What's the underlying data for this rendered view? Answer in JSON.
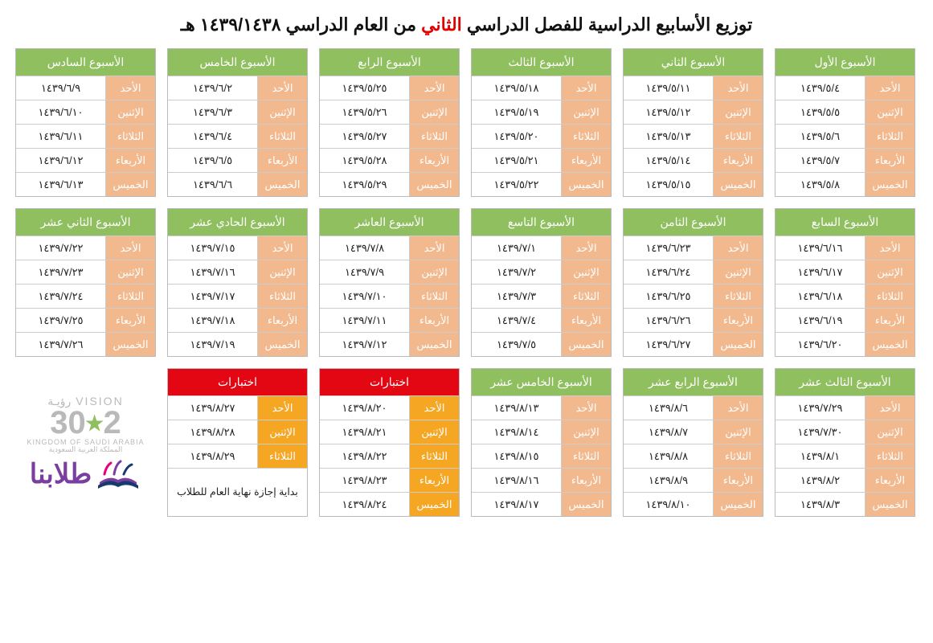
{
  "title_parts": {
    "a": "توزيع الأسابيع الدراسية للفصل الدراسي",
    "b": "الثاني",
    "c": "من العام الدراسي ١٤٣٩/١٤٣٨ هـ"
  },
  "colors": {
    "header_green": "#8fbf5f",
    "header_red": "#e30613",
    "label_orange": "#f2b98f",
    "label_yellow": "#f5a623",
    "border": "#cccccc",
    "title_red": "#e00000"
  },
  "day_names": [
    "الأحد",
    "الإثنين",
    "الثلاثاء",
    "الأربعاء",
    "الخميس"
  ],
  "weeks": [
    {
      "title": "الأسبوع الأول",
      "header": "green",
      "label": "orange",
      "dates": [
        "١٤٣٩/٥/٤",
        "١٤٣٩/٥/٥",
        "١٤٣٩/٥/٦",
        "١٤٣٩/٥/٧",
        "١٤٣٩/٥/٨"
      ]
    },
    {
      "title": "الأسبوع الثاني",
      "header": "green",
      "label": "orange",
      "dates": [
        "١٤٣٩/٥/١١",
        "١٤٣٩/٥/١٢",
        "١٤٣٩/٥/١٣",
        "١٤٣٩/٥/١٤",
        "١٤٣٩/٥/١٥"
      ]
    },
    {
      "title": "الأسبوع الثالث",
      "header": "green",
      "label": "orange",
      "dates": [
        "١٤٣٩/٥/١٨",
        "١٤٣٩/٥/١٩",
        "١٤٣٩/٥/٢٠",
        "١٤٣٩/٥/٢١",
        "١٤٣٩/٥/٢٢"
      ]
    },
    {
      "title": "الأسبوع الرابع",
      "header": "green",
      "label": "orange",
      "dates": [
        "١٤٣٩/٥/٢٥",
        "١٤٣٩/٥/٢٦",
        "١٤٣٩/٥/٢٧",
        "١٤٣٩/٥/٢٨",
        "١٤٣٩/٥/٢٩"
      ]
    },
    {
      "title": "الأسبوع الخامس",
      "header": "green",
      "label": "orange",
      "dates": [
        "١٤٣٩/٦/٢",
        "١٤٣٩/٦/٣",
        "١٤٣٩/٦/٤",
        "١٤٣٩/٦/٥",
        "١٤٣٩/٦/٦"
      ]
    },
    {
      "title": "الأسبوع السادس",
      "header": "green",
      "label": "orange",
      "dates": [
        "١٤٣٩/٦/٩",
        "١٤٣٩/٦/١٠",
        "١٤٣٩/٦/١١",
        "١٤٣٩/٦/١٢",
        "١٤٣٩/٦/١٣"
      ]
    },
    {
      "title": "الأسبوع السابع",
      "header": "green",
      "label": "orange",
      "dates": [
        "١٤٣٩/٦/١٦",
        "١٤٣٩/٦/١٧",
        "١٤٣٩/٦/١٨",
        "١٤٣٩/٦/١٩",
        "١٤٣٩/٦/٢٠"
      ]
    },
    {
      "title": "الأسبوع الثامن",
      "header": "green",
      "label": "orange",
      "dates": [
        "١٤٣٩/٦/٢٣",
        "١٤٣٩/٦/٢٤",
        "١٤٣٩/٦/٢٥",
        "١٤٣٩/٦/٢٦",
        "١٤٣٩/٦/٢٧"
      ]
    },
    {
      "title": "الأسبوع التاسع",
      "header": "green",
      "label": "orange",
      "dates": [
        "١٤٣٩/٧/١",
        "١٤٣٩/٧/٢",
        "١٤٣٩/٧/٣",
        "١٤٣٩/٧/٤",
        "١٤٣٩/٧/٥"
      ]
    },
    {
      "title": "الأسبوع العاشر",
      "header": "green",
      "label": "orange",
      "dates": [
        "١٤٣٩/٧/٨",
        "١٤٣٩/٧/٩",
        "١٤٣٩/٧/١٠",
        "١٤٣٩/٧/١١",
        "١٤٣٩/٧/١٢"
      ]
    },
    {
      "title": "الأسبوع الحادي عشر",
      "header": "green",
      "label": "orange",
      "dates": [
        "١٤٣٩/٧/١٥",
        "١٤٣٩/٧/١٦",
        "١٤٣٩/٧/١٧",
        "١٤٣٩/٧/١٨",
        "١٤٣٩/٧/١٩"
      ]
    },
    {
      "title": "الأسبوع الثاني عشر",
      "header": "green",
      "label": "orange",
      "dates": [
        "١٤٣٩/٧/٢٢",
        "١٤٣٩/٧/٢٣",
        "١٤٣٩/٧/٢٤",
        "١٤٣٩/٧/٢٥",
        "١٤٣٩/٧/٢٦"
      ]
    },
    {
      "title": "الأسبوع الثالث عشر",
      "header": "green",
      "label": "orange",
      "dates": [
        "١٤٣٩/٧/٢٩",
        "١٤٣٩/٧/٣٠",
        "١٤٣٩/٨/١",
        "١٤٣٩/٨/٢",
        "١٤٣٩/٨/٣"
      ]
    },
    {
      "title": "الأسبوع الرابع عشر",
      "header": "green",
      "label": "orange",
      "dates": [
        "١٤٣٩/٨/٦",
        "١٤٣٩/٨/٧",
        "١٤٣٩/٨/٨",
        "١٤٣٩/٨/٩",
        "١٤٣٩/٨/١٠"
      ]
    },
    {
      "title": "الأسبوع الخامس عشر",
      "header": "green",
      "label": "orange",
      "dates": [
        "١٤٣٩/٨/١٣",
        "١٤٣٩/٨/١٤",
        "١٤٣٩/٨/١٥",
        "١٤٣٩/٨/١٦",
        "١٤٣٩/٨/١٧"
      ]
    },
    {
      "title": "اختبارات",
      "header": "red",
      "label": "yellow",
      "dates": [
        "١٤٣٩/٨/٢٠",
        "١٤٣٩/٨/٢١",
        "١٤٣٩/٨/٢٢",
        "١٤٣٩/٨/٢٣",
        "١٤٣٩/٨/٢٤"
      ]
    },
    {
      "title": "اختبارات",
      "header": "red",
      "label": "yellow",
      "dates": [
        "١٤٣٩/٨/٢٧",
        "١٤٣٩/٨/٢٨",
        "١٤٣٩/٨/٢٩"
      ],
      "note": "بداية إجازة نهاية العام للطلاب"
    }
  ],
  "logos": {
    "vision_top": "VISION   رؤيـة",
    "vision_num": "2·30",
    "vision_sub": "KINGDOM OF SAUDI ARABIA  المملكة العربية السعودية",
    "tullabna": "طلابنا"
  }
}
